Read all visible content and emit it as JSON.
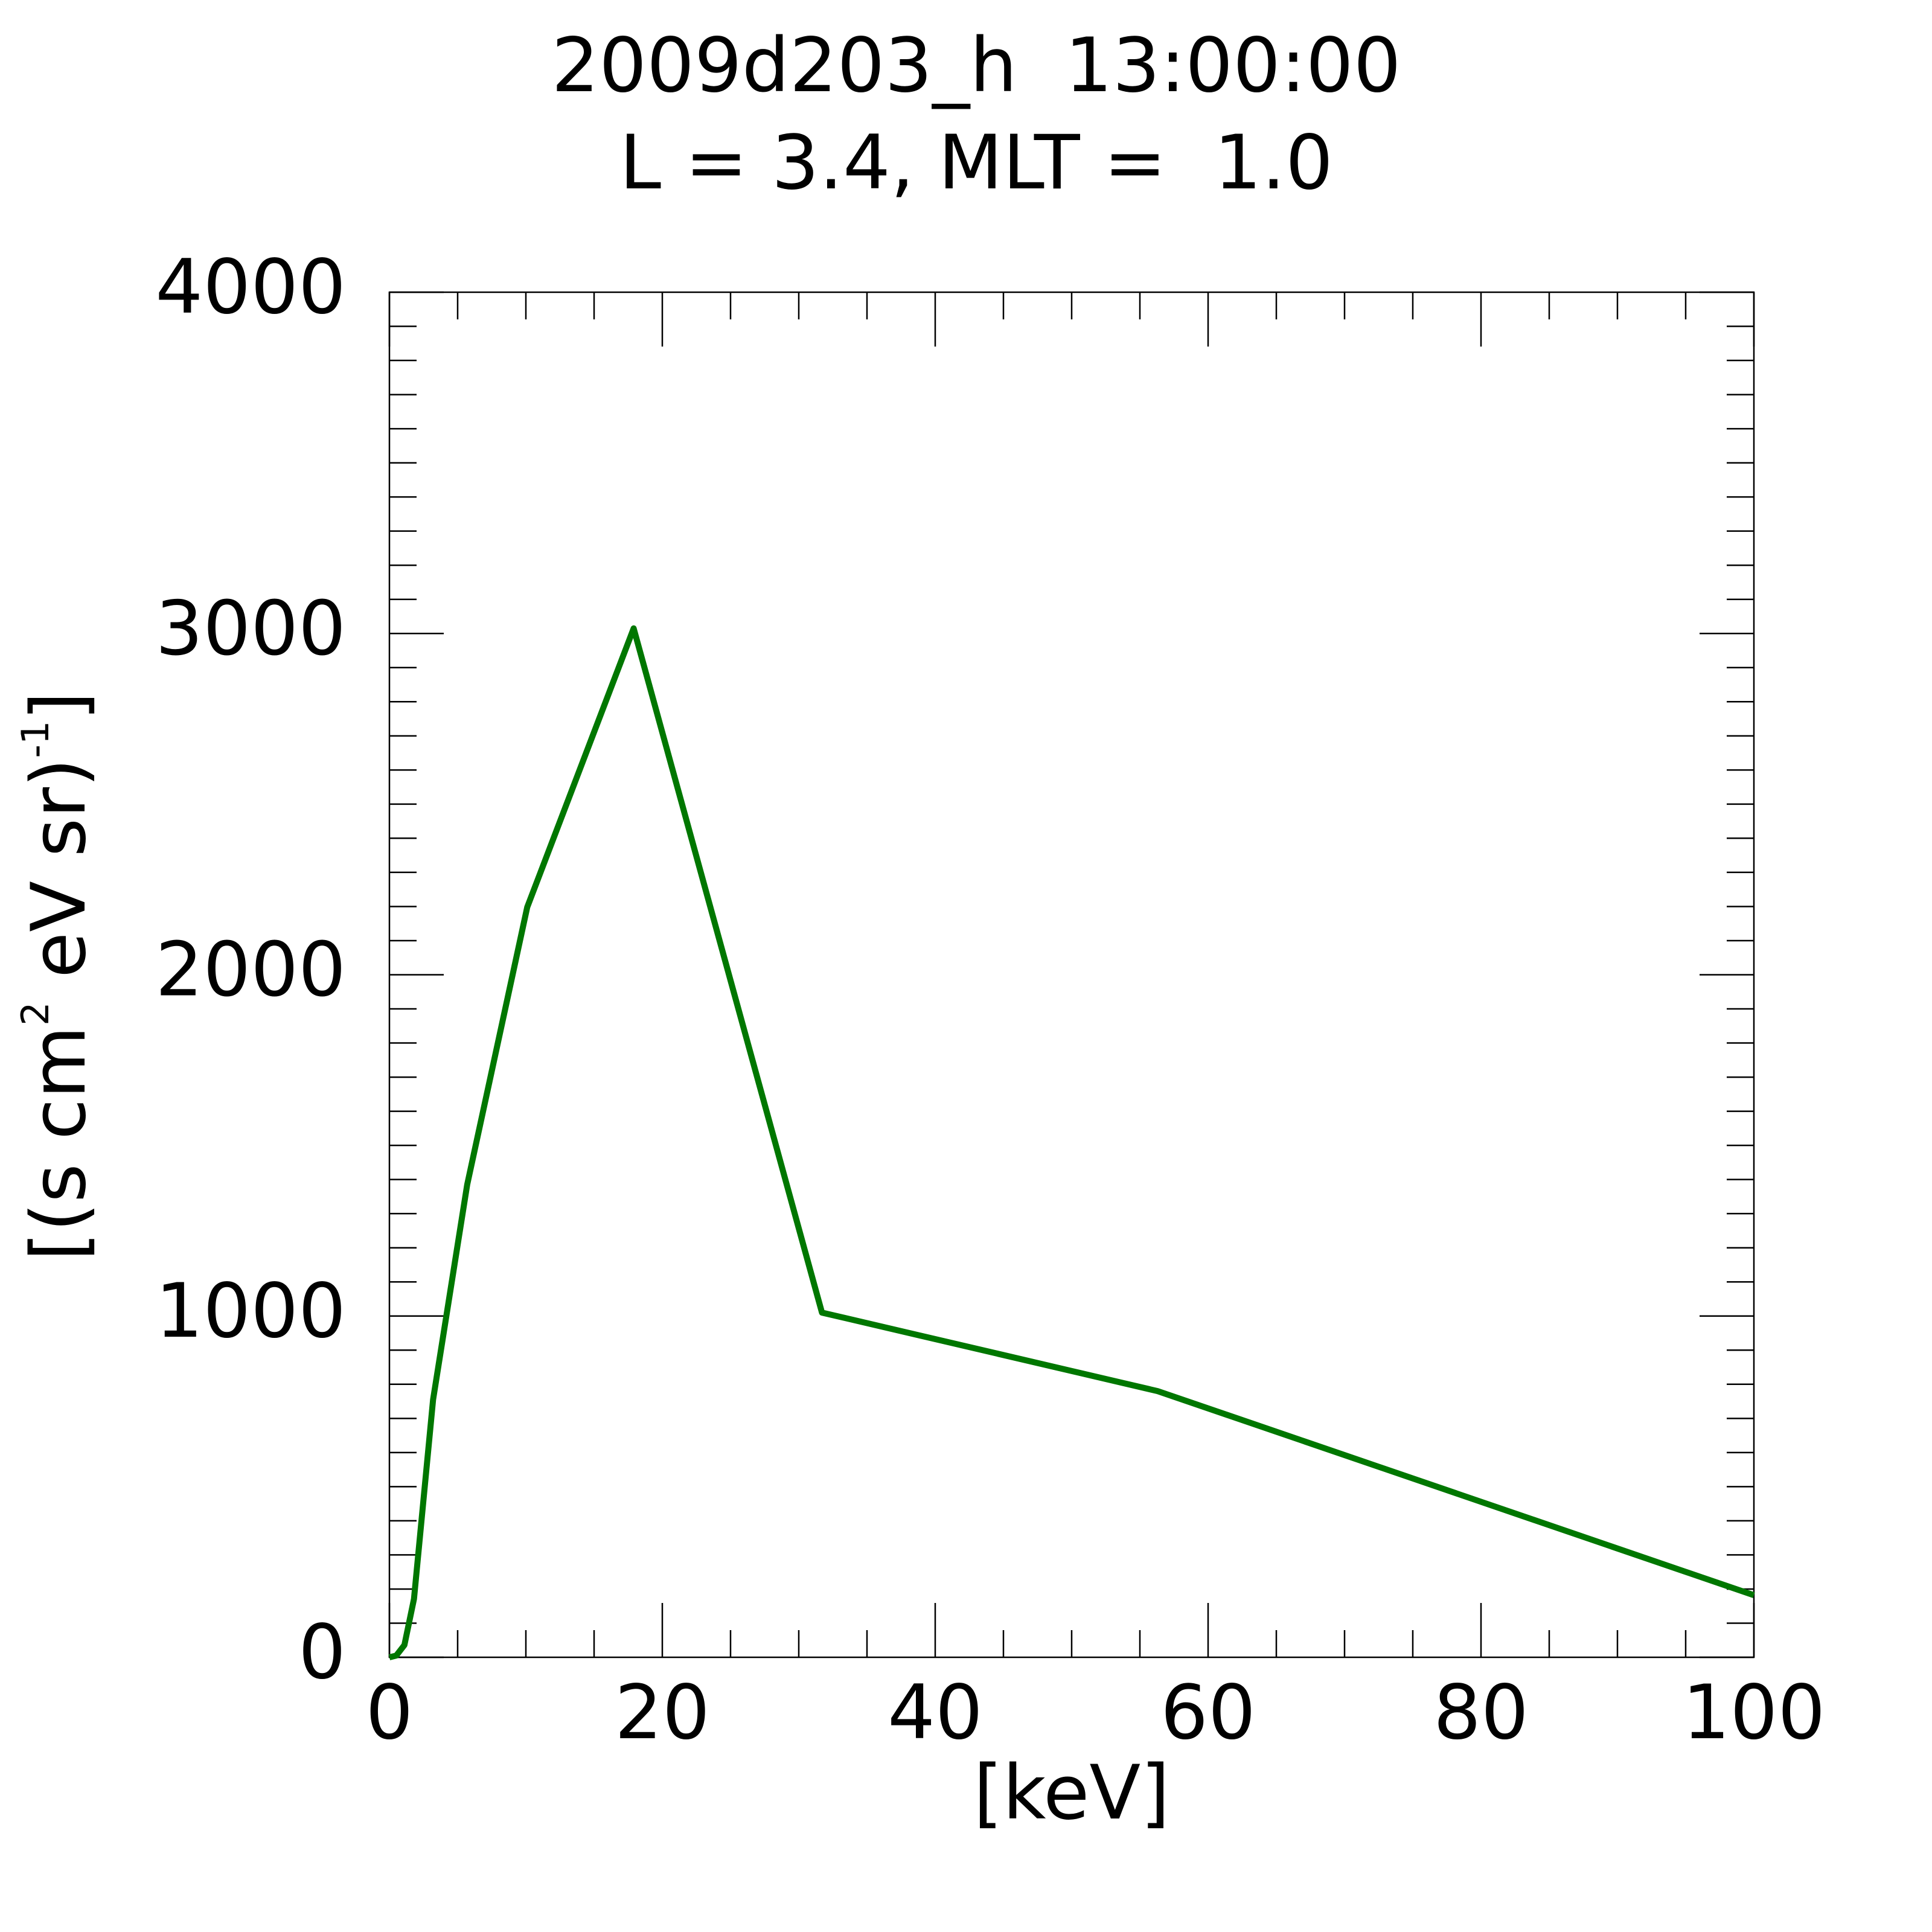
{
  "chart_data": {
    "type": "line",
    "title_lines": [
      "2009d203_h  13:00:00",
      "L = 3.4, MLT =  1.0"
    ],
    "x_label": "[keV]",
    "y_label_parts": [
      "[(s cm",
      "2",
      " eV sr)",
      "-1",
      "]"
    ],
    "x": [
      0,
      0.5,
      1.1,
      1.8,
      3.2,
      5.7,
      10.1,
      17.9,
      31.7,
      56.3,
      100
    ],
    "values": [
      0,
      5,
      36,
      171,
      755,
      1385,
      2198,
      3015,
      1010,
      780,
      182
    ],
    "color": "#007700",
    "xlim": [
      0,
      100
    ],
    "xticks": [
      0,
      20,
      40,
      60,
      80,
      100
    ],
    "ylim": [
      0,
      4000
    ],
    "yticks": [
      0,
      1000,
      2000,
      3000,
      4000
    ]
  }
}
